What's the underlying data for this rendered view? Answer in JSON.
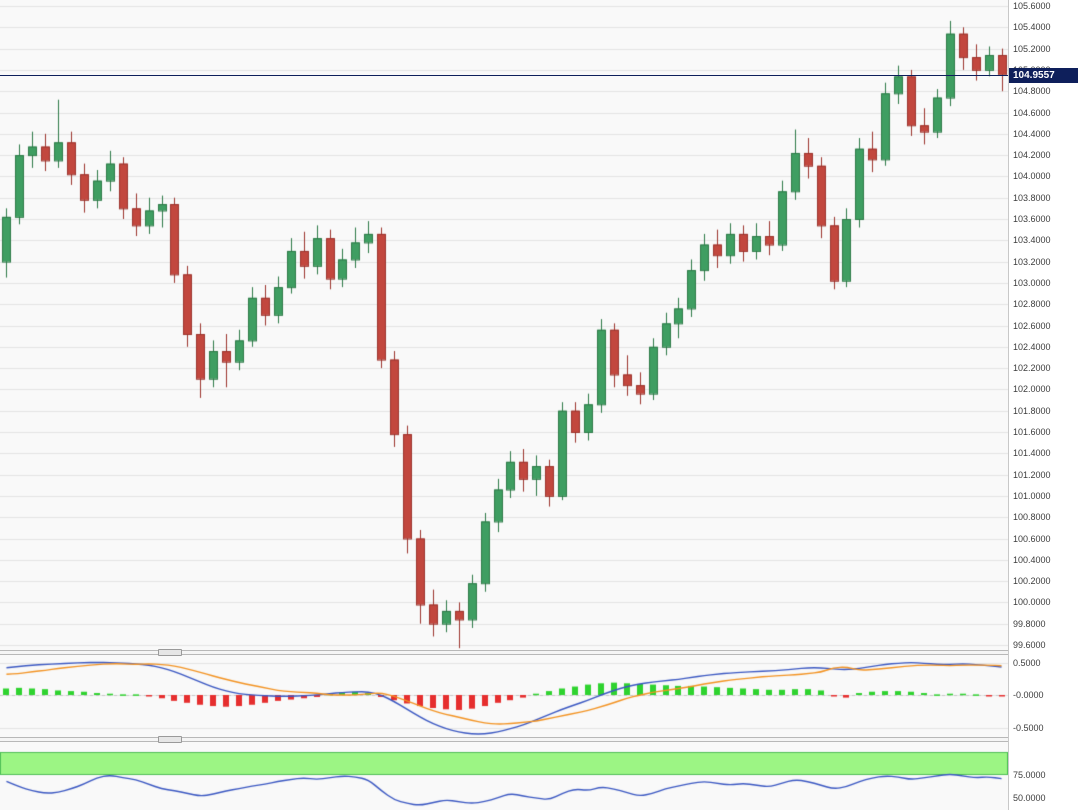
{
  "app": {
    "name": "candlestick-trading-chart"
  },
  "colors": {
    "pane_bg": "#f9f9f9",
    "axis_bg": "#ffffff",
    "grid": "#e4e4e4",
    "divider": "#b8b8b8",
    "candle_up_fill": "#3f9e62",
    "candle_up_border": "#2c7a47",
    "candle_down_fill": "#c2473e",
    "candle_down_border": "#9c332c",
    "macd_hist_up": "#2fd32f",
    "macd_hist_down": "#e62e2e",
    "macd_line": "#3a57c2",
    "signal_line": "#f39322",
    "stoch_line": "#3a57c2",
    "stoch_band_fill": "#9cf584",
    "stoch_band_border": "#4fbf57",
    "price_line": "#0e1f5b",
    "price_badge_bg": "#0e1f5b",
    "price_badge_text": "#ffffff",
    "tick_text": "#3c3c3c"
  },
  "chart_data": {
    "type": "candlestick",
    "grid": true,
    "legend": "none",
    "panes": [
      {
        "name": "price",
        "type": "candlestick",
        "y_min": 99.6,
        "y_max": 105.6,
        "tick_step": 0.2,
        "tick_decimals": 4,
        "price_line": 104.9557,
        "price_label": "104.9557",
        "candles_ohlc": [
          [
            103.2,
            103.7,
            103.05,
            103.62
          ],
          [
            103.62,
            104.3,
            103.55,
            104.2
          ],
          [
            104.2,
            104.42,
            104.08,
            104.28
          ],
          [
            104.28,
            104.4,
            104.05,
            104.15
          ],
          [
            104.15,
            104.72,
            104.08,
            104.32
          ],
          [
            104.32,
            104.42,
            103.92,
            104.02
          ],
          [
            104.02,
            104.12,
            103.66,
            103.78
          ],
          [
            103.78,
            104.06,
            103.7,
            103.96
          ],
          [
            103.96,
            104.24,
            103.86,
            104.12
          ],
          [
            104.12,
            104.18,
            103.6,
            103.7
          ],
          [
            103.7,
            103.84,
            103.44,
            103.54
          ],
          [
            103.54,
            103.8,
            103.46,
            103.68
          ],
          [
            103.68,
            103.82,
            103.52,
            103.74
          ],
          [
            103.74,
            103.8,
            103.0,
            103.08
          ],
          [
            103.08,
            103.16,
            102.4,
            102.52
          ],
          [
            102.52,
            102.62,
            101.92,
            102.1
          ],
          [
            102.1,
            102.46,
            102.02,
            102.36
          ],
          [
            102.36,
            102.52,
            102.02,
            102.26
          ],
          [
            102.26,
            102.56,
            102.18,
            102.46
          ],
          [
            102.46,
            102.96,
            102.4,
            102.86
          ],
          [
            102.86,
            102.98,
            102.6,
            102.7
          ],
          [
            102.7,
            103.06,
            102.62,
            102.96
          ],
          [
            102.96,
            103.42,
            102.9,
            103.3
          ],
          [
            103.3,
            103.48,
            103.04,
            103.16
          ],
          [
            103.16,
            103.54,
            103.08,
            103.42
          ],
          [
            103.42,
            103.5,
            102.94,
            103.04
          ],
          [
            103.04,
            103.32,
            102.96,
            103.22
          ],
          [
            103.22,
            103.52,
            103.14,
            103.38
          ],
          [
            103.38,
            103.58,
            103.28,
            103.46
          ],
          [
            103.46,
            103.52,
            102.2,
            102.28
          ],
          [
            102.28,
            102.36,
            101.46,
            101.58
          ],
          [
            101.58,
            101.66,
            100.46,
            100.6
          ],
          [
            100.6,
            100.68,
            99.8,
            99.98
          ],
          [
            99.98,
            100.12,
            99.68,
            99.8
          ],
          [
            99.8,
            100.02,
            99.72,
            99.92
          ],
          [
            99.92,
            100.0,
            99.57,
            99.84
          ],
          [
            99.84,
            100.26,
            99.76,
            100.18
          ],
          [
            100.18,
            100.84,
            100.1,
            100.76
          ],
          [
            100.76,
            101.16,
            100.66,
            101.06
          ],
          [
            101.06,
            101.42,
            100.98,
            101.32
          ],
          [
            101.32,
            101.44,
            101.04,
            101.16
          ],
          [
            101.16,
            101.38,
            101.0,
            101.28
          ],
          [
            101.28,
            101.34,
            100.9,
            101.0
          ],
          [
            101.0,
            101.88,
            100.96,
            101.8
          ],
          [
            101.8,
            101.88,
            101.5,
            101.6
          ],
          [
            101.6,
            101.96,
            101.52,
            101.86
          ],
          [
            101.86,
            102.66,
            101.78,
            102.56
          ],
          [
            102.56,
            102.62,
            102.02,
            102.14
          ],
          [
            102.14,
            102.32,
            101.94,
            102.04
          ],
          [
            102.04,
            102.16,
            101.86,
            101.96
          ],
          [
            101.96,
            102.48,
            101.9,
            102.4
          ],
          [
            102.4,
            102.72,
            102.32,
            102.62
          ],
          [
            102.62,
            102.86,
            102.48,
            102.76
          ],
          [
            102.76,
            103.22,
            102.68,
            103.12
          ],
          [
            103.12,
            103.46,
            103.02,
            103.36
          ],
          [
            103.36,
            103.5,
            103.14,
            103.26
          ],
          [
            103.26,
            103.56,
            103.18,
            103.46
          ],
          [
            103.46,
            103.54,
            103.2,
            103.3
          ],
          [
            103.3,
            103.56,
            103.22,
            103.44
          ],
          [
            103.44,
            103.58,
            103.26,
            103.36
          ],
          [
            103.36,
            103.96,
            103.3,
            103.86
          ],
          [
            103.86,
            104.44,
            103.78,
            104.22
          ],
          [
            104.22,
            104.36,
            103.98,
            104.1
          ],
          [
            104.1,
            104.18,
            103.42,
            103.54
          ],
          [
            103.54,
            103.62,
            102.94,
            103.02
          ],
          [
            103.02,
            103.7,
            102.96,
            103.6
          ],
          [
            103.6,
            104.36,
            103.52,
            104.26
          ],
          [
            104.26,
            104.42,
            104.04,
            104.16
          ],
          [
            104.16,
            104.88,
            104.1,
            104.78
          ],
          [
            104.78,
            105.04,
            104.68,
            104.94
          ],
          [
            104.94,
            105.0,
            104.38,
            104.48
          ],
          [
            104.48,
            104.64,
            104.3,
            104.42
          ],
          [
            104.42,
            104.82,
            104.36,
            104.74
          ],
          [
            104.74,
            105.46,
            104.66,
            105.34
          ],
          [
            105.34,
            105.4,
            105.0,
            105.12
          ],
          [
            105.12,
            105.24,
            104.9,
            105.0
          ],
          [
            105.0,
            105.22,
            104.94,
            105.14
          ],
          [
            105.14,
            105.2,
            104.8,
            104.96
          ]
        ]
      },
      {
        "name": "macd",
        "type": "macd",
        "ticks": [
          {
            "value": 0.5,
            "label": "0.5000"
          },
          {
            "value": 0,
            "label": "-0.0000"
          },
          {
            "value": -0.5,
            "label": "-0.5000"
          }
        ],
        "note": "signal line = macd_line - histogram",
        "macd_line": [
          0.42,
          0.44,
          0.46,
          0.47,
          0.48,
          0.49,
          0.5,
          0.5,
          0.5,
          0.49,
          0.48,
          0.46,
          0.42,
          0.36,
          0.28,
          0.2,
          0.12,
          0.06,
          0.02,
          0.0,
          -0.01,
          -0.02,
          -0.02,
          -0.01,
          0.0,
          0.02,
          0.04,
          0.05,
          0.05,
          0.0,
          -0.1,
          -0.22,
          -0.34,
          -0.44,
          -0.52,
          -0.57,
          -0.6,
          -0.6,
          -0.57,
          -0.52,
          -0.46,
          -0.38,
          -0.3,
          -0.22,
          -0.15,
          -0.08,
          0.0,
          0.07,
          0.13,
          0.17,
          0.2,
          0.22,
          0.24,
          0.27,
          0.3,
          0.32,
          0.34,
          0.35,
          0.36,
          0.37,
          0.38,
          0.4,
          0.42,
          0.42,
          0.4,
          0.39,
          0.41,
          0.44,
          0.47,
          0.49,
          0.5,
          0.49,
          0.47,
          0.47,
          0.48,
          0.47,
          0.45,
          0.43
        ],
        "histogram": [
          0.1,
          0.11,
          0.1,
          0.09,
          0.07,
          0.06,
          0.05,
          0.03,
          0.02,
          0.01,
          0.01,
          -0.02,
          -0.05,
          -0.09,
          -0.12,
          -0.15,
          -0.17,
          -0.18,
          -0.17,
          -0.15,
          -0.12,
          -0.09,
          -0.07,
          -0.05,
          -0.03,
          0.02,
          0.04,
          0.05,
          0.03,
          -0.03,
          -0.08,
          -0.13,
          -0.17,
          -0.2,
          -0.22,
          -0.23,
          -0.21,
          -0.17,
          -0.12,
          -0.08,
          -0.04,
          0.02,
          0.06,
          0.1,
          0.13,
          0.16,
          0.18,
          0.19,
          0.18,
          0.17,
          0.16,
          0.15,
          0.14,
          0.14,
          0.13,
          0.12,
          0.11,
          0.1,
          0.09,
          0.08,
          0.08,
          0.09,
          0.09,
          0.07,
          -0.02,
          -0.04,
          0.03,
          0.05,
          0.06,
          0.06,
          0.05,
          0.03,
          0.01,
          0.02,
          0.02,
          0.01,
          -0.01,
          -0.02
        ]
      },
      {
        "name": "stochastic",
        "type": "line",
        "ticks": [
          {
            "value": 75,
            "label": "75.0000"
          },
          {
            "value": 50,
            "label": "50.0000"
          }
        ],
        "band": [
          75,
          100
        ],
        "values": [
          68,
          62,
          58,
          55,
          56,
          60,
          65,
          72,
          75,
          72,
          70,
          65,
          60,
          58,
          55,
          52,
          54,
          58,
          60,
          63,
          65,
          68,
          70,
          72,
          70,
          72,
          74,
          73,
          70,
          58,
          48,
          44,
          42,
          45,
          48,
          46,
          44,
          46,
          50,
          55,
          52,
          50,
          48,
          55,
          60,
          58,
          62,
          60,
          56,
          52,
          55,
          60,
          63,
          66,
          68,
          66,
          64,
          66,
          64,
          62,
          66,
          70,
          68,
          64,
          60,
          62,
          68,
          72,
          74,
          73,
          70,
          72,
          74,
          76,
          74,
          72,
          73,
          71
        ]
      }
    ]
  }
}
